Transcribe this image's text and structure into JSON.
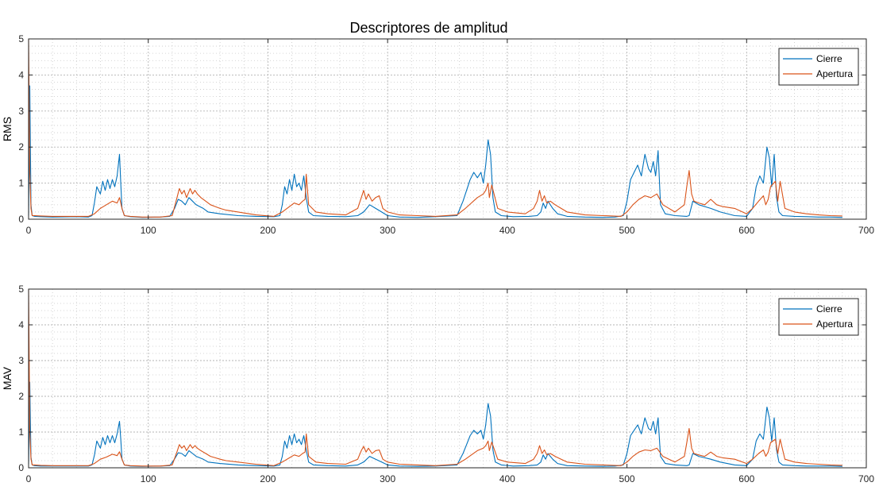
{
  "figure": {
    "title": "Descriptores de amplitud",
    "colors": {
      "cierre": "#0072BD",
      "apertura": "#D95319",
      "axes": "#262626",
      "grid": "#c8c8c8"
    }
  },
  "chart_data": [
    {
      "type": "line",
      "title": "Descriptores de amplitud",
      "ylabel": "RMS",
      "xlabel": "",
      "xlim": [
        0,
        700
      ],
      "ylim": [
        0,
        5
      ],
      "xticks": [
        0,
        100,
        200,
        300,
        400,
        500,
        600,
        700
      ],
      "yticks": [
        0,
        1,
        2,
        3,
        4,
        5
      ],
      "grid": "on (major and minor, dotted)",
      "legend_position": "top-right",
      "series": [
        {
          "name": "Cierre",
          "color": "#0072BD",
          "x": [
            0,
            1,
            2,
            3,
            5,
            10,
            20,
            40,
            50,
            53,
            55,
            57,
            60,
            62,
            64,
            66,
            68,
            70,
            72,
            74,
            76,
            77,
            78,
            80,
            85,
            95,
            110,
            118,
            122,
            125,
            128,
            131,
            134,
            137,
            140,
            143,
            146,
            150,
            160,
            175,
            190,
            205,
            210,
            212,
            214,
            216,
            218,
            220,
            222,
            224,
            226,
            228,
            230,
            232,
            234,
            238,
            250,
            265,
            275,
            280,
            285,
            290,
            295,
            300,
            310,
            325,
            340,
            358,
            363,
            366,
            369,
            372,
            375,
            378,
            380,
            382,
            384,
            386,
            388,
            390,
            395,
            405,
            418,
            425,
            428,
            430,
            432,
            434,
            436,
            438,
            442,
            450,
            465,
            480,
            490,
            497,
            500,
            503,
            506,
            509,
            512,
            515,
            518,
            520,
            522,
            524,
            526,
            528,
            532,
            540,
            550,
            552,
            555,
            560,
            570,
            578,
            590,
            600,
            605,
            608,
            611,
            614,
            617,
            619,
            621,
            623,
            625,
            627,
            630,
            640,
            650,
            660,
            670,
            680
          ],
          "y": [
            0.1,
            3.7,
            0.4,
            0.1,
            0.08,
            0.07,
            0.06,
            0.07,
            0.06,
            0.1,
            0.45,
            0.9,
            0.7,
            1.05,
            0.8,
            1.1,
            0.85,
            1.1,
            0.9,
            1.2,
            1.8,
            1.0,
            0.3,
            0.1,
            0.07,
            0.05,
            0.06,
            0.08,
            0.3,
            0.55,
            0.5,
            0.4,
            0.6,
            0.5,
            0.4,
            0.35,
            0.3,
            0.2,
            0.15,
            0.1,
            0.08,
            0.07,
            0.1,
            0.4,
            0.9,
            0.7,
            1.1,
            0.8,
            1.25,
            0.9,
            1.0,
            0.8,
            1.2,
            0.6,
            0.2,
            0.1,
            0.08,
            0.07,
            0.1,
            0.2,
            0.4,
            0.3,
            0.2,
            0.1,
            0.06,
            0.05,
            0.07,
            0.1,
            0.5,
            0.8,
            1.1,
            1.3,
            1.15,
            1.3,
            1.0,
            1.5,
            2.2,
            1.8,
            0.6,
            0.2,
            0.1,
            0.07,
            0.08,
            0.1,
            0.2,
            0.45,
            0.3,
            0.5,
            0.4,
            0.3,
            0.15,
            0.08,
            0.06,
            0.05,
            0.06,
            0.1,
            0.5,
            1.1,
            1.3,
            1.5,
            1.2,
            1.8,
            1.4,
            1.3,
            1.6,
            1.2,
            1.9,
            0.4,
            0.15,
            0.1,
            0.08,
            0.1,
            0.5,
            0.4,
            0.3,
            0.2,
            0.1,
            0.08,
            0.3,
            0.9,
            1.2,
            1.0,
            2.0,
            1.7,
            0.9,
            1.8,
            0.6,
            0.2,
            0.1,
            0.08,
            0.07,
            0.06,
            0.06,
            0.05
          ]
        },
        {
          "name": "Apertura",
          "color": "#D95319",
          "x": [
            0,
            1,
            2,
            3,
            5,
            10,
            20,
            40,
            50,
            55,
            60,
            65,
            70,
            74,
            76,
            78,
            80,
            85,
            95,
            110,
            120,
            124,
            126,
            128,
            130,
            132,
            135,
            137,
            139,
            141,
            144,
            148,
            152,
            156,
            160,
            165,
            175,
            190,
            205,
            212,
            218,
            222,
            226,
            229,
            231,
            232,
            234,
            240,
            250,
            265,
            275,
            278,
            280,
            282,
            284,
            287,
            290,
            293,
            296,
            300,
            310,
            325,
            340,
            358,
            365,
            370,
            375,
            380,
            382,
            384,
            385,
            387,
            392,
            400,
            415,
            422,
            425,
            427,
            429,
            431,
            433,
            436,
            440,
            445,
            450,
            465,
            480,
            495,
            500,
            505,
            510,
            515,
            520,
            525,
            530,
            540,
            548,
            550,
            552,
            554,
            556,
            560,
            565,
            570,
            575,
            580,
            590,
            600,
            605,
            610,
            614,
            616,
            618,
            620,
            624,
            626,
            628,
            632,
            640,
            650,
            660,
            670,
            680
          ],
          "y": [
            5.0,
            1.3,
            0.3,
            0.1,
            0.1,
            0.09,
            0.08,
            0.08,
            0.08,
            0.15,
            0.3,
            0.4,
            0.5,
            0.45,
            0.6,
            0.3,
            0.1,
            0.08,
            0.06,
            0.06,
            0.1,
            0.6,
            0.85,
            0.7,
            0.8,
            0.6,
            0.85,
            0.7,
            0.8,
            0.7,
            0.6,
            0.5,
            0.4,
            0.35,
            0.3,
            0.25,
            0.2,
            0.12,
            0.08,
            0.2,
            0.35,
            0.45,
            0.4,
            0.5,
            0.55,
            1.25,
            0.4,
            0.2,
            0.15,
            0.12,
            0.3,
            0.6,
            0.8,
            0.55,
            0.7,
            0.5,
            0.6,
            0.65,
            0.3,
            0.2,
            0.12,
            0.1,
            0.08,
            0.12,
            0.3,
            0.45,
            0.6,
            0.7,
            0.8,
            1.0,
            0.6,
            0.95,
            0.3,
            0.2,
            0.15,
            0.3,
            0.5,
            0.8,
            0.5,
            0.65,
            0.45,
            0.5,
            0.4,
            0.3,
            0.2,
            0.12,
            0.1,
            0.08,
            0.2,
            0.4,
            0.55,
            0.65,
            0.6,
            0.7,
            0.4,
            0.2,
            0.4,
            0.9,
            1.35,
            0.7,
            0.5,
            0.45,
            0.4,
            0.55,
            0.4,
            0.35,
            0.3,
            0.15,
            0.3,
            0.5,
            0.65,
            0.4,
            0.55,
            0.9,
            1.05,
            0.5,
            1.05,
            0.3,
            0.2,
            0.15,
            0.12,
            0.1,
            0.09
          ]
        }
      ]
    },
    {
      "type": "line",
      "title": "",
      "ylabel": "MAV",
      "xlabel": "",
      "xlim": [
        0,
        700
      ],
      "ylim": [
        0,
        5
      ],
      "xticks": [
        0,
        100,
        200,
        300,
        400,
        500,
        600,
        700
      ],
      "yticks": [
        0,
        1,
        2,
        3,
        4,
        5
      ],
      "grid": "on (major and minor, dotted)",
      "legend_position": "top-right",
      "series": [
        {
          "name": "Cierre",
          "color": "#0072BD",
          "x": [
            0,
            1,
            2,
            3,
            5,
            10,
            20,
            40,
            50,
            53,
            55,
            57,
            60,
            62,
            64,
            66,
            68,
            70,
            72,
            74,
            76,
            77,
            78,
            80,
            85,
            95,
            110,
            118,
            122,
            125,
            128,
            131,
            134,
            137,
            140,
            143,
            146,
            150,
            160,
            175,
            190,
            205,
            210,
            212,
            214,
            216,
            218,
            220,
            222,
            224,
            226,
            228,
            230,
            232,
            234,
            238,
            250,
            265,
            275,
            280,
            285,
            290,
            295,
            300,
            310,
            325,
            340,
            358,
            363,
            366,
            369,
            372,
            375,
            378,
            380,
            382,
            384,
            386,
            388,
            390,
            395,
            405,
            418,
            425,
            428,
            430,
            432,
            434,
            436,
            438,
            442,
            450,
            465,
            480,
            490,
            497,
            500,
            503,
            506,
            509,
            512,
            515,
            518,
            520,
            522,
            524,
            526,
            528,
            532,
            540,
            550,
            552,
            555,
            560,
            570,
            578,
            590,
            600,
            605,
            608,
            611,
            614,
            617,
            619,
            621,
            623,
            625,
            627,
            630,
            640,
            650,
            660,
            670,
            680
          ],
          "y": [
            0.1,
            2.4,
            0.3,
            0.08,
            0.06,
            0.05,
            0.05,
            0.05,
            0.05,
            0.08,
            0.35,
            0.75,
            0.55,
            0.85,
            0.65,
            0.9,
            0.7,
            0.9,
            0.7,
            0.95,
            1.3,
            0.8,
            0.25,
            0.08,
            0.05,
            0.04,
            0.05,
            0.06,
            0.25,
            0.42,
            0.4,
            0.32,
            0.48,
            0.4,
            0.32,
            0.28,
            0.24,
            0.16,
            0.12,
            0.08,
            0.06,
            0.05,
            0.08,
            0.32,
            0.75,
            0.55,
            0.9,
            0.65,
            0.95,
            0.7,
            0.8,
            0.65,
            0.9,
            0.5,
            0.16,
            0.08,
            0.06,
            0.05,
            0.08,
            0.16,
            0.32,
            0.24,
            0.16,
            0.08,
            0.05,
            0.04,
            0.05,
            0.08,
            0.4,
            0.65,
            0.9,
            1.05,
            0.95,
            1.05,
            0.8,
            1.2,
            1.8,
            1.45,
            0.5,
            0.16,
            0.08,
            0.05,
            0.06,
            0.08,
            0.16,
            0.36,
            0.24,
            0.4,
            0.32,
            0.24,
            0.12,
            0.06,
            0.05,
            0.04,
            0.05,
            0.08,
            0.4,
            0.9,
            1.05,
            1.2,
            0.95,
            1.4,
            1.1,
            1.05,
            1.3,
            0.95,
            1.4,
            0.32,
            0.12,
            0.08,
            0.06,
            0.08,
            0.4,
            0.32,
            0.24,
            0.16,
            0.08,
            0.06,
            0.24,
            0.75,
            0.95,
            0.8,
            1.7,
            1.4,
            0.75,
            1.4,
            0.5,
            0.16,
            0.08,
            0.06,
            0.05,
            0.05,
            0.05,
            0.04
          ]
        },
        {
          "name": "Apertura",
          "color": "#D95319",
          "x": [
            0,
            1,
            2,
            3,
            5,
            10,
            20,
            40,
            50,
            55,
            60,
            65,
            70,
            74,
            76,
            78,
            80,
            85,
            95,
            110,
            120,
            124,
            126,
            128,
            130,
            132,
            135,
            137,
            139,
            141,
            144,
            148,
            152,
            156,
            160,
            165,
            175,
            190,
            205,
            212,
            218,
            222,
            226,
            229,
            231,
            232,
            234,
            240,
            250,
            265,
            275,
            278,
            280,
            282,
            284,
            287,
            290,
            293,
            296,
            300,
            310,
            325,
            340,
            358,
            365,
            370,
            375,
            380,
            382,
            384,
            385,
            387,
            392,
            400,
            415,
            422,
            425,
            427,
            429,
            431,
            433,
            436,
            440,
            445,
            450,
            465,
            480,
            495,
            500,
            505,
            510,
            515,
            520,
            525,
            530,
            540,
            548,
            550,
            552,
            554,
            556,
            560,
            565,
            570,
            575,
            580,
            590,
            600,
            605,
            610,
            614,
            616,
            618,
            620,
            624,
            626,
            628,
            632,
            640,
            650,
            660,
            670,
            680
          ],
          "y": [
            5.0,
            1.0,
            0.25,
            0.08,
            0.08,
            0.07,
            0.06,
            0.06,
            0.06,
            0.12,
            0.24,
            0.3,
            0.38,
            0.34,
            0.45,
            0.24,
            0.08,
            0.06,
            0.05,
            0.05,
            0.08,
            0.45,
            0.65,
            0.55,
            0.62,
            0.48,
            0.65,
            0.55,
            0.62,
            0.55,
            0.48,
            0.4,
            0.32,
            0.28,
            0.24,
            0.2,
            0.16,
            0.1,
            0.06,
            0.16,
            0.28,
            0.36,
            0.32,
            0.4,
            0.44,
            0.95,
            0.32,
            0.16,
            0.12,
            0.1,
            0.24,
            0.48,
            0.6,
            0.44,
            0.55,
            0.4,
            0.48,
            0.5,
            0.24,
            0.16,
            0.1,
            0.08,
            0.06,
            0.1,
            0.24,
            0.36,
            0.48,
            0.55,
            0.62,
            0.75,
            0.48,
            0.72,
            0.24,
            0.16,
            0.12,
            0.24,
            0.4,
            0.62,
            0.4,
            0.5,
            0.36,
            0.4,
            0.32,
            0.24,
            0.16,
            0.1,
            0.08,
            0.06,
            0.16,
            0.32,
            0.44,
            0.5,
            0.48,
            0.55,
            0.32,
            0.16,
            0.32,
            0.7,
            1.1,
            0.55,
            0.4,
            0.36,
            0.32,
            0.44,
            0.32,
            0.28,
            0.24,
            0.12,
            0.24,
            0.4,
            0.5,
            0.32,
            0.44,
            0.7,
            0.8,
            0.4,
            0.8,
            0.24,
            0.16,
            0.12,
            0.1,
            0.08,
            0.07
          ]
        }
      ]
    }
  ]
}
